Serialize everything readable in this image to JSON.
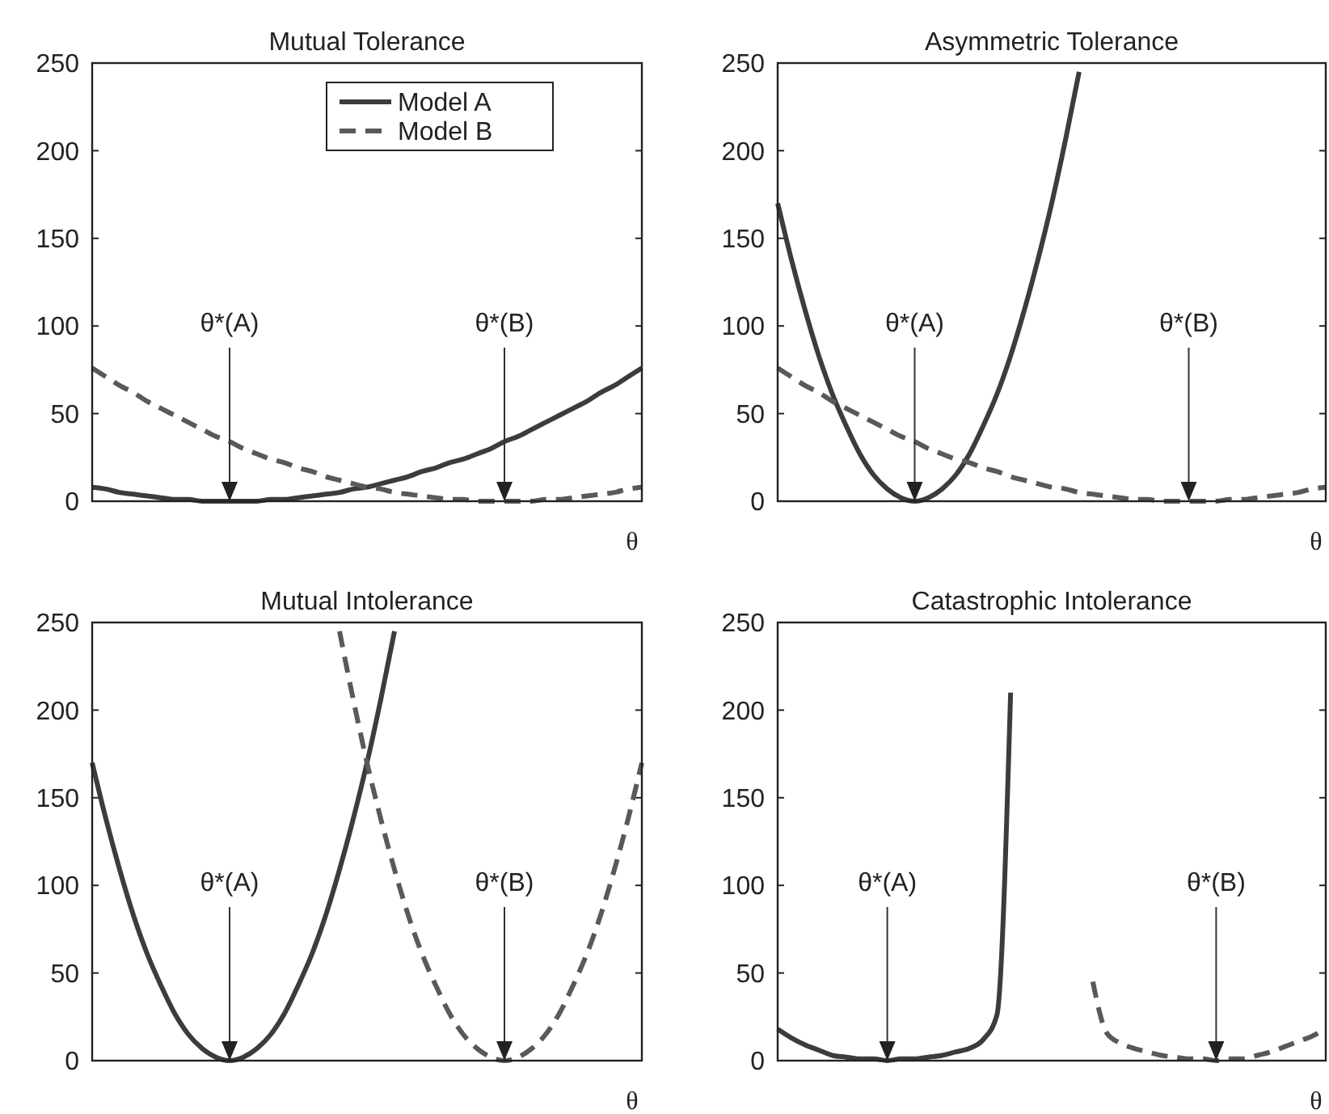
{
  "chart_data": [
    {
      "type": "line",
      "title": "Mutual Tolerance",
      "xlabel": "θ",
      "categories": [
        null,
        null,
        null,
        null,
        null,
        null,
        null,
        null,
        null,
        null,
        null,
        null,
        null,
        null,
        null,
        null,
        null,
        null,
        null,
        null,
        null,
        null,
        null,
        null,
        null,
        null,
        null,
        null,
        null,
        null,
        null,
        null,
        null,
        null,
        null,
        null,
        null,
        null,
        null,
        null,
        null
      ],
      "ylim": [
        0,
        250
      ],
      "yticks": [
        0,
        50,
        100,
        150,
        200,
        250
      ],
      "legend": "top right",
      "annotations": [
        "θ*(A)",
        "θ*(B)"
      ],
      "series": [
        {
          "name": "Model A",
          "color": "#3c3c3c",
          "line_style": "solid",
          "values": [
            8,
            7,
            5,
            4,
            3,
            2,
            1,
            1,
            0,
            0,
            0,
            0,
            0,
            1,
            1,
            2,
            3,
            4,
            5,
            7,
            8,
            10,
            12,
            14,
            17,
            19,
            22,
            24,
            27,
            30,
            34,
            37,
            41,
            45,
            49,
            53,
            57,
            62,
            66,
            71,
            76
          ]
        },
        {
          "name": "Model B",
          "color": "#595959",
          "line_style": "dashed",
          "values": [
            76,
            71,
            66,
            62,
            57,
            53,
            49,
            45,
            41,
            37,
            34,
            30,
            27,
            24,
            22,
            19,
            17,
            14,
            12,
            10,
            8,
            7,
            5,
            4,
            3,
            2,
            1,
            1,
            0,
            0,
            0,
            0,
            0,
            1,
            1,
            2,
            3,
            4,
            5,
            7,
            8
          ]
        }
      ]
    },
    {
      "type": "line",
      "title": "Asymmetric Tolerance",
      "xlabel": "θ",
      "categories": [
        null,
        null,
        null,
        null,
        null,
        null,
        null,
        null,
        null,
        null,
        null,
        null,
        null,
        null,
        null,
        null,
        null,
        null,
        null,
        null,
        null,
        null,
        null,
        null,
        null,
        null,
        null,
        null,
        null,
        null,
        null,
        null,
        null,
        null,
        null,
        null,
        null,
        null,
        null,
        null,
        null
      ],
      "ylim": [
        0,
        250
      ],
      "yticks": [
        0,
        50,
        100,
        150,
        200,
        250
      ],
      "annotations": [
        "θ*(A)",
        "θ*(B)"
      ],
      "series": [
        {
          "color": "#3c3c3c",
          "line_style": "solid",
          "values": [
            170,
            138,
            109,
            83,
            61,
            43,
            27,
            15,
            7,
            2,
            0,
            2,
            7,
            15,
            27,
            43,
            61,
            83,
            109,
            138,
            170,
            206,
            245,
            null,
            null,
            null,
            null,
            null,
            null,
            null,
            null,
            null,
            null,
            null,
            null,
            null,
            null,
            null,
            null,
            null,
            null
          ]
        },
        {
          "color": "#595959",
          "line_style": "dashed",
          "values": [
            76,
            71,
            66,
            62,
            57,
            53,
            49,
            45,
            41,
            37,
            34,
            30,
            27,
            24,
            22,
            19,
            17,
            14,
            12,
            10,
            8,
            7,
            5,
            4,
            3,
            2,
            1,
            1,
            0,
            0,
            0,
            0,
            0,
            1,
            1,
            2,
            3,
            4,
            5,
            7,
            8
          ]
        }
      ]
    },
    {
      "type": "line",
      "title": "Mutual Intolerance",
      "xlabel": "θ",
      "categories": [
        null,
        null,
        null,
        null,
        null,
        null,
        null,
        null,
        null,
        null,
        null,
        null,
        null,
        null,
        null,
        null,
        null,
        null,
        null,
        null,
        null,
        null,
        null,
        null,
        null,
        null,
        null,
        null,
        null,
        null,
        null,
        null,
        null,
        null,
        null,
        null,
        null,
        null,
        null,
        null,
        null
      ],
      "ylim": [
        0,
        250
      ],
      "yticks": [
        0,
        50,
        100,
        150,
        200,
        250
      ],
      "annotations": [
        "θ*(A)",
        "θ*(B)"
      ],
      "series": [
        {
          "color": "#3c3c3c",
          "line_style": "solid",
          "values": [
            170,
            138,
            109,
            83,
            61,
            43,
            27,
            15,
            7,
            2,
            0,
            2,
            7,
            15,
            27,
            43,
            61,
            83,
            109,
            138,
            170,
            206,
            245,
            null,
            null,
            null,
            null,
            null,
            null,
            null,
            null,
            null,
            null,
            null,
            null,
            null,
            null,
            null,
            null,
            null,
            null
          ]
        },
        {
          "color": "#595959",
          "line_style": "dashed",
          "values": [
            null,
            null,
            null,
            null,
            null,
            null,
            null,
            null,
            null,
            null,
            null,
            null,
            null,
            null,
            null,
            null,
            null,
            null,
            245,
            206,
            170,
            138,
            109,
            83,
            61,
            43,
            27,
            15,
            7,
            2,
            0,
            2,
            7,
            15,
            27,
            43,
            61,
            83,
            109,
            138,
            170
          ]
        }
      ]
    },
    {
      "type": "line",
      "title": "Catastrophic Intolerance",
      "xlabel": "θ",
      "categories": [
        null,
        null,
        null,
        null,
        null,
        null,
        null,
        null,
        null,
        null,
        null,
        null,
        null,
        null,
        null,
        null,
        null,
        null,
        null,
        null,
        null,
        null,
        null,
        null,
        null,
        null,
        null,
        null,
        null,
        null,
        null,
        null,
        null,
        null,
        null,
        null,
        null,
        null,
        null,
        null,
        null
      ],
      "ylim": [
        0,
        250
      ],
      "yticks": [
        0,
        50,
        100,
        150,
        200,
        250
      ],
      "annotations": [
        "θ*(A)",
        "θ*(B)"
      ],
      "series": [
        {
          "color": "#3c3c3c",
          "line_style": "solid",
          "values": [
            18,
            13,
            9,
            6,
            3,
            2,
            1,
            1,
            0,
            1,
            1,
            2,
            3,
            5,
            7,
            12,
            26,
            210,
            null,
            null,
            null,
            null,
            null,
            null,
            null,
            null,
            null,
            null,
            null,
            null,
            null,
            null,
            null,
            null,
            null,
            null,
            null,
            null,
            null,
            null,
            null
          ]
        },
        {
          "color": "#595959",
          "line_style": "dashed",
          "values": [
            null,
            null,
            null,
            null,
            null,
            null,
            null,
            null,
            null,
            null,
            null,
            null,
            null,
            null,
            null,
            null,
            null,
            null,
            null,
            null,
            null,
            null,
            null,
            45,
            16,
            10,
            7,
            5,
            3,
            2,
            1,
            1,
            0,
            1,
            1,
            3,
            5,
            8,
            11,
            14,
            18
          ]
        }
      ]
    }
  ]
}
